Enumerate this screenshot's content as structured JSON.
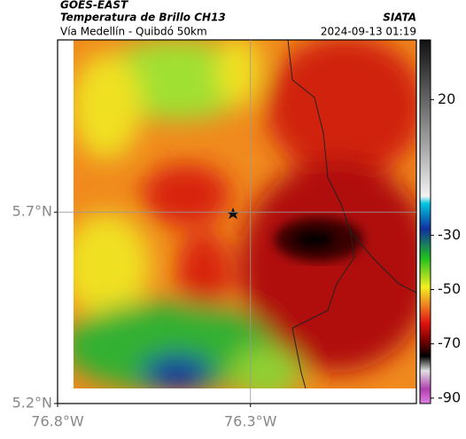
{
  "header": {
    "source": "GOES-EAST",
    "title": "Temperatura de Brillo CH13",
    "org": "SIATA",
    "subtitle": "Vía Medellín - Quibdó 50km",
    "datetime": "2024-09-13 01:19"
  },
  "map": {
    "latlim": [
      5.2,
      6.15
    ],
    "lonlim": [
      -76.8,
      -75.87
    ],
    "latticks": [
      {
        "value": 5.7,
        "label": "5.7°N"
      },
      {
        "value": 5.2,
        "label": "5.2°N"
      }
    ],
    "lonticks": [
      {
        "value": -76.8,
        "label": "76.8°W"
      },
      {
        "value": -76.3,
        "label": "76.3°W"
      }
    ],
    "grid": true
  },
  "colorbar": {
    "range": [
      -92,
      42
    ],
    "ticks": [
      20,
      -30,
      -50,
      -70,
      -90
    ]
  }
}
